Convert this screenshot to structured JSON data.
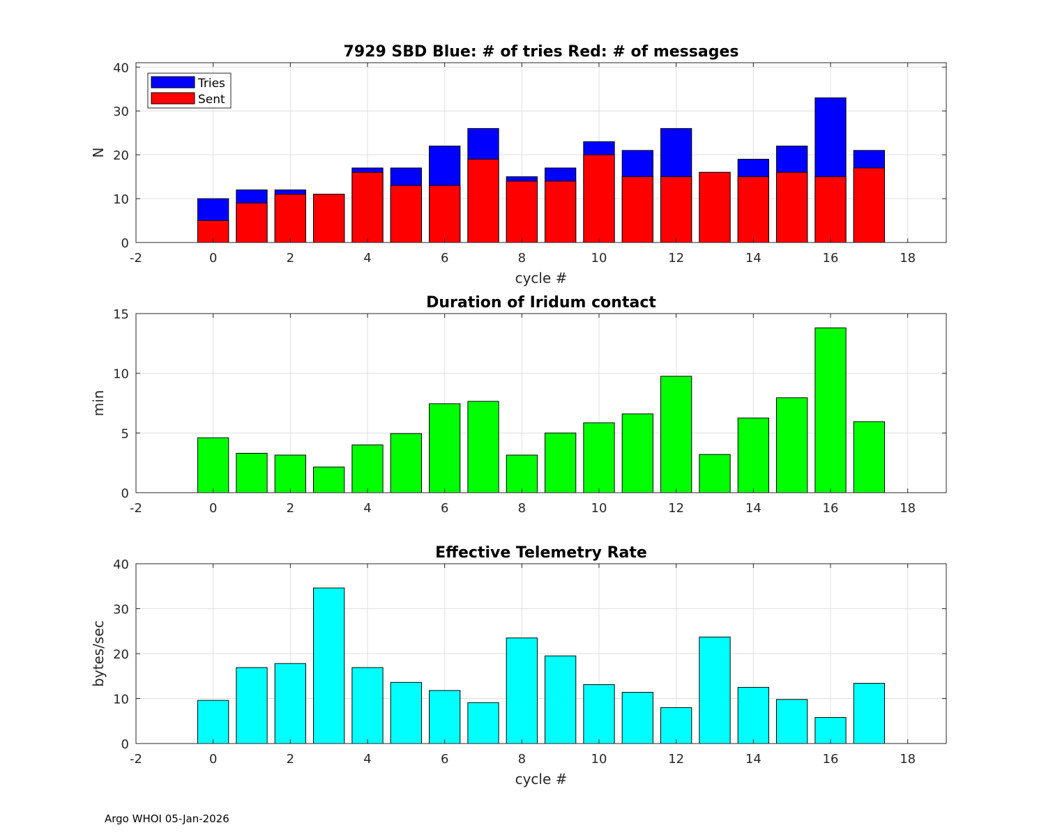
{
  "footer": "Argo WHOI 05-Jan-2026",
  "chart_data": [
    {
      "type": "bar",
      "stacked_overlay": true,
      "title": "7929 SBD  Blue: # of tries   Red: # of messages",
      "xlabel": "cycle #",
      "ylabel": "N",
      "xlim": [
        -2,
        19
      ],
      "ylim": [
        0,
        41
      ],
      "xticks": [
        -2,
        0,
        2,
        4,
        6,
        8,
        10,
        12,
        14,
        16,
        18
      ],
      "yticks": [
        0,
        10,
        20,
        30,
        40
      ],
      "grid": true,
      "legend": {
        "location": "top-left",
        "entries": [
          "Tries",
          "Sent"
        ]
      },
      "x": [
        0,
        1,
        2,
        3,
        4,
        5,
        6,
        7,
        8,
        9,
        10,
        11,
        12,
        13,
        14,
        15,
        16,
        17
      ],
      "series": [
        {
          "name": "Tries",
          "color": "#0000ff",
          "values": [
            10,
            12,
            12,
            11,
            17,
            17,
            22,
            26,
            15,
            17,
            23,
            21,
            26,
            16,
            19,
            22,
            33,
            21
          ]
        },
        {
          "name": "Sent",
          "color": "#ff0000",
          "values": [
            5,
            9,
            11,
            11,
            16,
            13,
            13,
            19,
            14,
            14,
            20,
            15,
            15,
            16,
            15,
            16,
            15,
            17
          ]
        }
      ]
    },
    {
      "type": "bar",
      "title": "Duration of Iridum contact",
      "xlabel": "",
      "ylabel": "min",
      "xlim": [
        -2,
        19
      ],
      "ylim": [
        0,
        15
      ],
      "xticks": [
        -2,
        0,
        2,
        4,
        6,
        8,
        10,
        12,
        14,
        16,
        18
      ],
      "yticks": [
        0,
        5,
        10,
        15
      ],
      "grid": true,
      "x": [
        0,
        1,
        2,
        3,
        4,
        5,
        6,
        7,
        8,
        9,
        10,
        11,
        12,
        13,
        14,
        15,
        16,
        17
      ],
      "series": [
        {
          "name": "Duration",
          "color": "#00ff00",
          "values": [
            4.6,
            3.3,
            3.15,
            2.15,
            4.0,
            4.95,
            7.45,
            7.65,
            3.15,
            5.0,
            5.85,
            6.6,
            9.75,
            3.2,
            6.25,
            7.95,
            13.8,
            5.95
          ]
        }
      ]
    },
    {
      "type": "bar",
      "title": "Effective Telemetry Rate",
      "xlabel": "cycle #",
      "ylabel": "bytes/sec",
      "xlim": [
        -2,
        19
      ],
      "ylim": [
        0,
        40
      ],
      "xticks": [
        -2,
        0,
        2,
        4,
        6,
        8,
        10,
        12,
        14,
        16,
        18
      ],
      "yticks": [
        0,
        10,
        20,
        30,
        40
      ],
      "grid": true,
      "x": [
        0,
        1,
        2,
        3,
        4,
        5,
        6,
        7,
        8,
        9,
        10,
        11,
        12,
        13,
        14,
        15,
        16,
        17
      ],
      "series": [
        {
          "name": "Rate",
          "color": "#00ffff",
          "values": [
            9.6,
            16.9,
            17.8,
            34.6,
            16.9,
            13.6,
            11.8,
            9.1,
            23.5,
            19.5,
            13.1,
            11.4,
            8.0,
            23.7,
            12.5,
            9.8,
            5.8,
            13.4
          ]
        }
      ]
    }
  ]
}
